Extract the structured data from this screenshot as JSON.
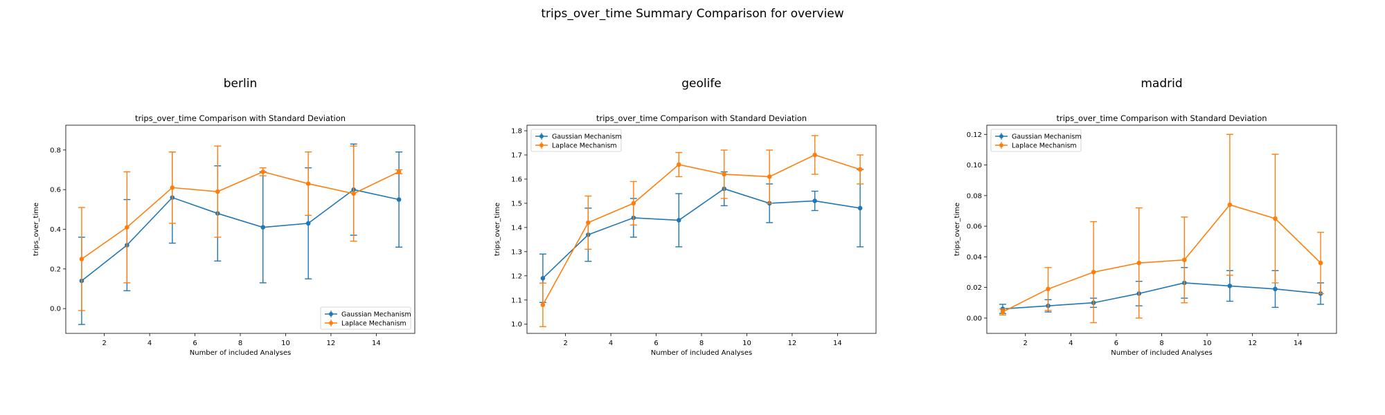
{
  "figure": {
    "suptitle": "trips_over_time Summary Comparison for overview"
  },
  "colors": {
    "gaussian": "#1f77b4",
    "laplace": "#ff7f0e"
  },
  "chart_data": [
    {
      "type": "line",
      "panel_title": "berlin",
      "title": "trips_over_time Comparison with Standard Deviation",
      "xlabel": "Number of included Analyses",
      "ylabel": "trips_over_time",
      "x": [
        1,
        3,
        5,
        7,
        9,
        11,
        13,
        15
      ],
      "xlim": [
        0.3,
        15.7
      ],
      "ylim": [
        -0.125,
        0.925
      ],
      "xticks": [
        2,
        4,
        6,
        8,
        10,
        12,
        14
      ],
      "yticks": [
        0.0,
        0.2,
        0.4,
        0.6,
        0.8
      ],
      "ytick_labels": [
        "0.0",
        "0.2",
        "0.4",
        "0.6",
        "0.8"
      ],
      "legend": "lower-right",
      "grid": false,
      "series": [
        {
          "name": "Gaussian Mechanism",
          "color_key": "gaussian",
          "values": [
            0.14,
            0.32,
            0.56,
            0.48,
            0.41,
            0.43,
            0.6,
            0.55
          ],
          "errors": [
            0.22,
            0.23,
            0.23,
            0.24,
            0.28,
            0.28,
            0.23,
            0.24
          ]
        },
        {
          "name": "Laplace Mechanism",
          "color_key": "laplace",
          "values": [
            0.25,
            0.41,
            0.61,
            0.59,
            0.69,
            0.63,
            0.58,
            0.69
          ],
          "errors": [
            0.26,
            0.28,
            0.18,
            0.23,
            0.02,
            0.16,
            0.24,
            0.01
          ]
        }
      ]
    },
    {
      "type": "line",
      "panel_title": "geolife",
      "title": "trips_over_time Comparison with Standard Deviation",
      "xlabel": "Number of included Analyses",
      "ylabel": "trips_over_time",
      "x": [
        1,
        3,
        5,
        7,
        9,
        11,
        13,
        15
      ],
      "xlim": [
        0.3,
        15.7
      ],
      "ylim": [
        0.962,
        1.823
      ],
      "xticks": [
        2,
        4,
        6,
        8,
        10,
        12,
        14
      ],
      "yticks": [
        1.0,
        1.1,
        1.2,
        1.3,
        1.4,
        1.5,
        1.6,
        1.7,
        1.8
      ],
      "ytick_labels": [
        "1.0",
        "1.1",
        "1.2",
        "1.3",
        "1.4",
        "1.5",
        "1.6",
        "1.7",
        "1.8"
      ],
      "legend": "upper-left",
      "grid": false,
      "series": [
        {
          "name": "Gaussian Mechanism",
          "color_key": "gaussian",
          "values": [
            1.19,
            1.37,
            1.44,
            1.43,
            1.56,
            1.5,
            1.51,
            1.48
          ],
          "errors": [
            0.1,
            0.11,
            0.08,
            0.11,
            0.07,
            0.08,
            0.04,
            0.16
          ]
        },
        {
          "name": "Laplace Mechanism",
          "color_key": "laplace",
          "values": [
            1.08,
            1.42,
            1.5,
            1.66,
            1.62,
            1.61,
            1.7,
            1.64
          ],
          "errors": [
            0.09,
            0.11,
            0.09,
            0.05,
            0.1,
            0.11,
            0.08,
            0.06
          ]
        }
      ]
    },
    {
      "type": "line",
      "panel_title": "madrid",
      "title": "trips_over_time Comparison with Standard Deviation",
      "xlabel": "Number of included Analyses",
      "ylabel": "trips_over_time",
      "x": [
        1,
        3,
        5,
        7,
        9,
        11,
        13,
        15
      ],
      "xlim": [
        0.3,
        15.7
      ],
      "ylim": [
        -0.01,
        0.126
      ],
      "xticks": [
        2,
        4,
        6,
        8,
        10,
        12,
        14
      ],
      "yticks": [
        0.0,
        0.02,
        0.04,
        0.06,
        0.08,
        0.1,
        0.12
      ],
      "ytick_labels": [
        "0.00",
        "0.02",
        "0.04",
        "0.06",
        "0.08",
        "0.10",
        "0.12"
      ],
      "legend": "upper-left",
      "grid": false,
      "series": [
        {
          "name": "Gaussian Mechanism",
          "color_key": "gaussian",
          "values": [
            0.006,
            0.008,
            0.01,
            0.016,
            0.023,
            0.021,
            0.019,
            0.016
          ],
          "errors": [
            0.003,
            0.004,
            0.003,
            0.008,
            0.01,
            0.01,
            0.012,
            0.007
          ]
        },
        {
          "name": "Laplace Mechanism",
          "color_key": "laplace",
          "values": [
            0.004,
            0.019,
            0.03,
            0.036,
            0.038,
            0.074,
            0.065,
            0.036
          ],
          "errors": [
            0.002,
            0.014,
            0.033,
            0.036,
            0.028,
            0.046,
            0.042,
            0.02
          ]
        }
      ]
    }
  ]
}
